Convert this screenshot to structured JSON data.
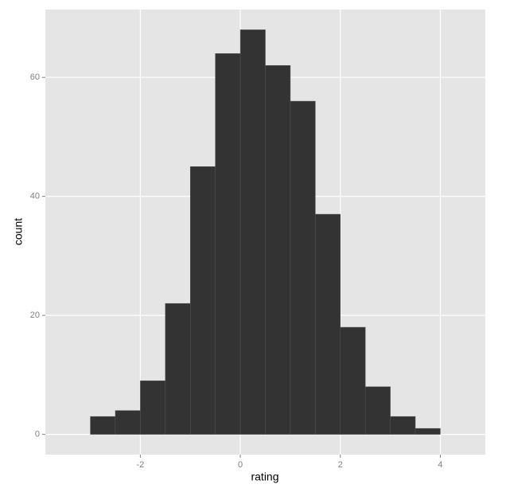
{
  "chart_data": {
    "type": "histogram",
    "x_label": "rating",
    "y_label": "count",
    "bins": [
      -3,
      -2.5,
      -2,
      -1.5,
      -1,
      -0.5,
      0,
      0.5,
      1,
      1.5,
      2,
      2.5,
      3,
      3.5,
      4
    ],
    "values": [
      3,
      4,
      9,
      22,
      45,
      64,
      68,
      62,
      56,
      37,
      18,
      8,
      3,
      1
    ],
    "color": "#333333",
    "xlim": [
      -3.9,
      4.9
    ],
    "xticks": [
      -2,
      0,
      2,
      4
    ],
    "ylim": [
      -3.4,
      71.4
    ],
    "yticks": [
      0,
      20,
      40,
      60
    ],
    "grid": true
  }
}
